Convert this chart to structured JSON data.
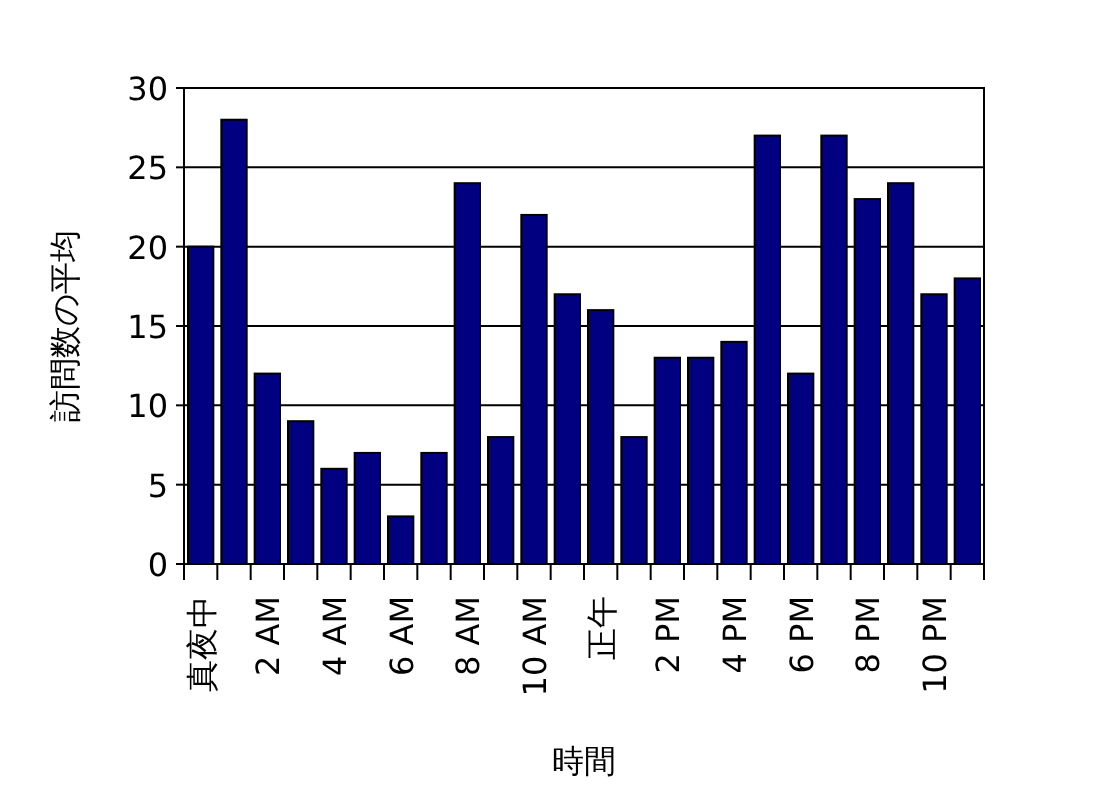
{
  "chart_data": {
    "type": "bar",
    "xlabel": "時間",
    "ylabel": "訪問数の平均",
    "categories": [
      "真夜中",
      null,
      "2 AM",
      null,
      "4 AM",
      null,
      "6 AM",
      null,
      "8 AM",
      null,
      "10 AM",
      null,
      "正午",
      null,
      "2 PM",
      null,
      "4 PM",
      null,
      "6 PM",
      null,
      "8 PM",
      null,
      "10 PM",
      null
    ],
    "values": [
      20,
      28,
      12,
      9,
      6,
      7,
      3,
      7,
      24,
      8,
      22,
      17,
      16,
      8,
      13,
      13,
      14,
      27,
      12,
      27,
      23,
      24,
      17,
      18
    ],
    "color": "#000080",
    "ylim": [
      0,
      30
    ],
    "yticks": [
      0,
      5,
      10,
      15,
      20,
      25,
      30
    ],
    "grid": "y"
  }
}
